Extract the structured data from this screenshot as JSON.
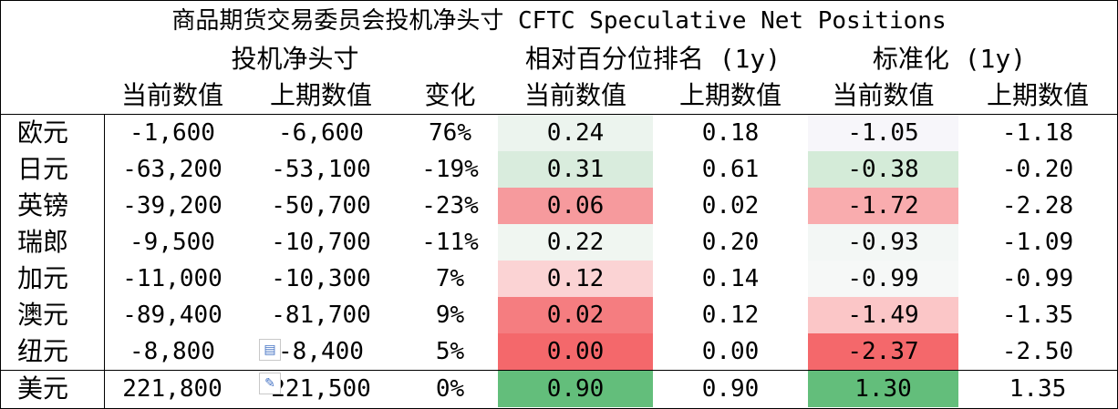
{
  "title": "商品期货交易委员会投机净头寸 CFTC Speculative Net Positions",
  "groups": {
    "net": "投机净头寸",
    "rank": "相对百分位排名 (1y)",
    "std": "标准化 (1y)"
  },
  "columns": {
    "current": "当前数值",
    "previous": "上期数值",
    "change": "变化",
    "rank_current": "当前数值",
    "rank_previous": "上期数值",
    "std_current": "当前数值",
    "std_previous": "上期数值"
  },
  "rows": [
    {
      "name": "欧元",
      "cur": "-1,600",
      "prev": "-6,600",
      "chg": "76%",
      "rcur": "0.24",
      "rprev": "0.18",
      "scur": "-1.05",
      "sprev": "-1.18"
    },
    {
      "name": "日元",
      "cur": "-63,200",
      "prev": "-53,100",
      "chg": "-19%",
      "rcur": "0.31",
      "rprev": "0.61",
      "scur": "-0.38",
      "sprev": "-0.20"
    },
    {
      "name": "英镑",
      "cur": "-39,200",
      "prev": "-50,700",
      "chg": "-23%",
      "rcur": "0.06",
      "rprev": "0.02",
      "scur": "-1.72",
      "sprev": "-2.28"
    },
    {
      "name": "瑞郎",
      "cur": "-9,500",
      "prev": "-10,700",
      "chg": "-11%",
      "rcur": "0.22",
      "rprev": "0.20",
      "scur": "-0.93",
      "sprev": "-1.09"
    },
    {
      "name": "加元",
      "cur": "-11,000",
      "prev": "-10,300",
      "chg": "7%",
      "rcur": "0.12",
      "rprev": "0.14",
      "scur": "-0.99",
      "sprev": "-0.99"
    },
    {
      "name": "澳元",
      "cur": "-89,400",
      "prev": "-81,700",
      "chg": "9%",
      "rcur": "0.02",
      "rprev": "0.12",
      "scur": "-1.49",
      "sprev": "-1.35"
    },
    {
      "name": "纽元",
      "cur": "-8,800",
      "prev": "-8,400",
      "chg": "5%",
      "rcur": "0.00",
      "rprev": "0.00",
      "scur": "-2.37",
      "sprev": "-2.50"
    },
    {
      "name": "美元",
      "cur": "221,800",
      "prev": "221,500",
      "chg": "0%",
      "rcur": "0.90",
      "rprev": "0.90",
      "scur": "1.30",
      "sprev": "1.35"
    }
  ],
  "rank_colors": [
    "#ecf4ee",
    "#d9ecdd",
    "#f69a9d",
    "#f0f6f1",
    "#fbd3d4",
    "#f57d80",
    "#f4686b",
    "#63be7b"
  ],
  "std_colors": [
    "#f7f6fa",
    "#d4ebd8",
    "#f9acae",
    "#f3f7f5",
    "#f6f8f7",
    "#fbc6c7",
    "#f4686b",
    "#63be7b"
  ],
  "icons": {
    "quick_analysis": "quick-analysis-icon",
    "edit": "pencil-icon"
  }
}
